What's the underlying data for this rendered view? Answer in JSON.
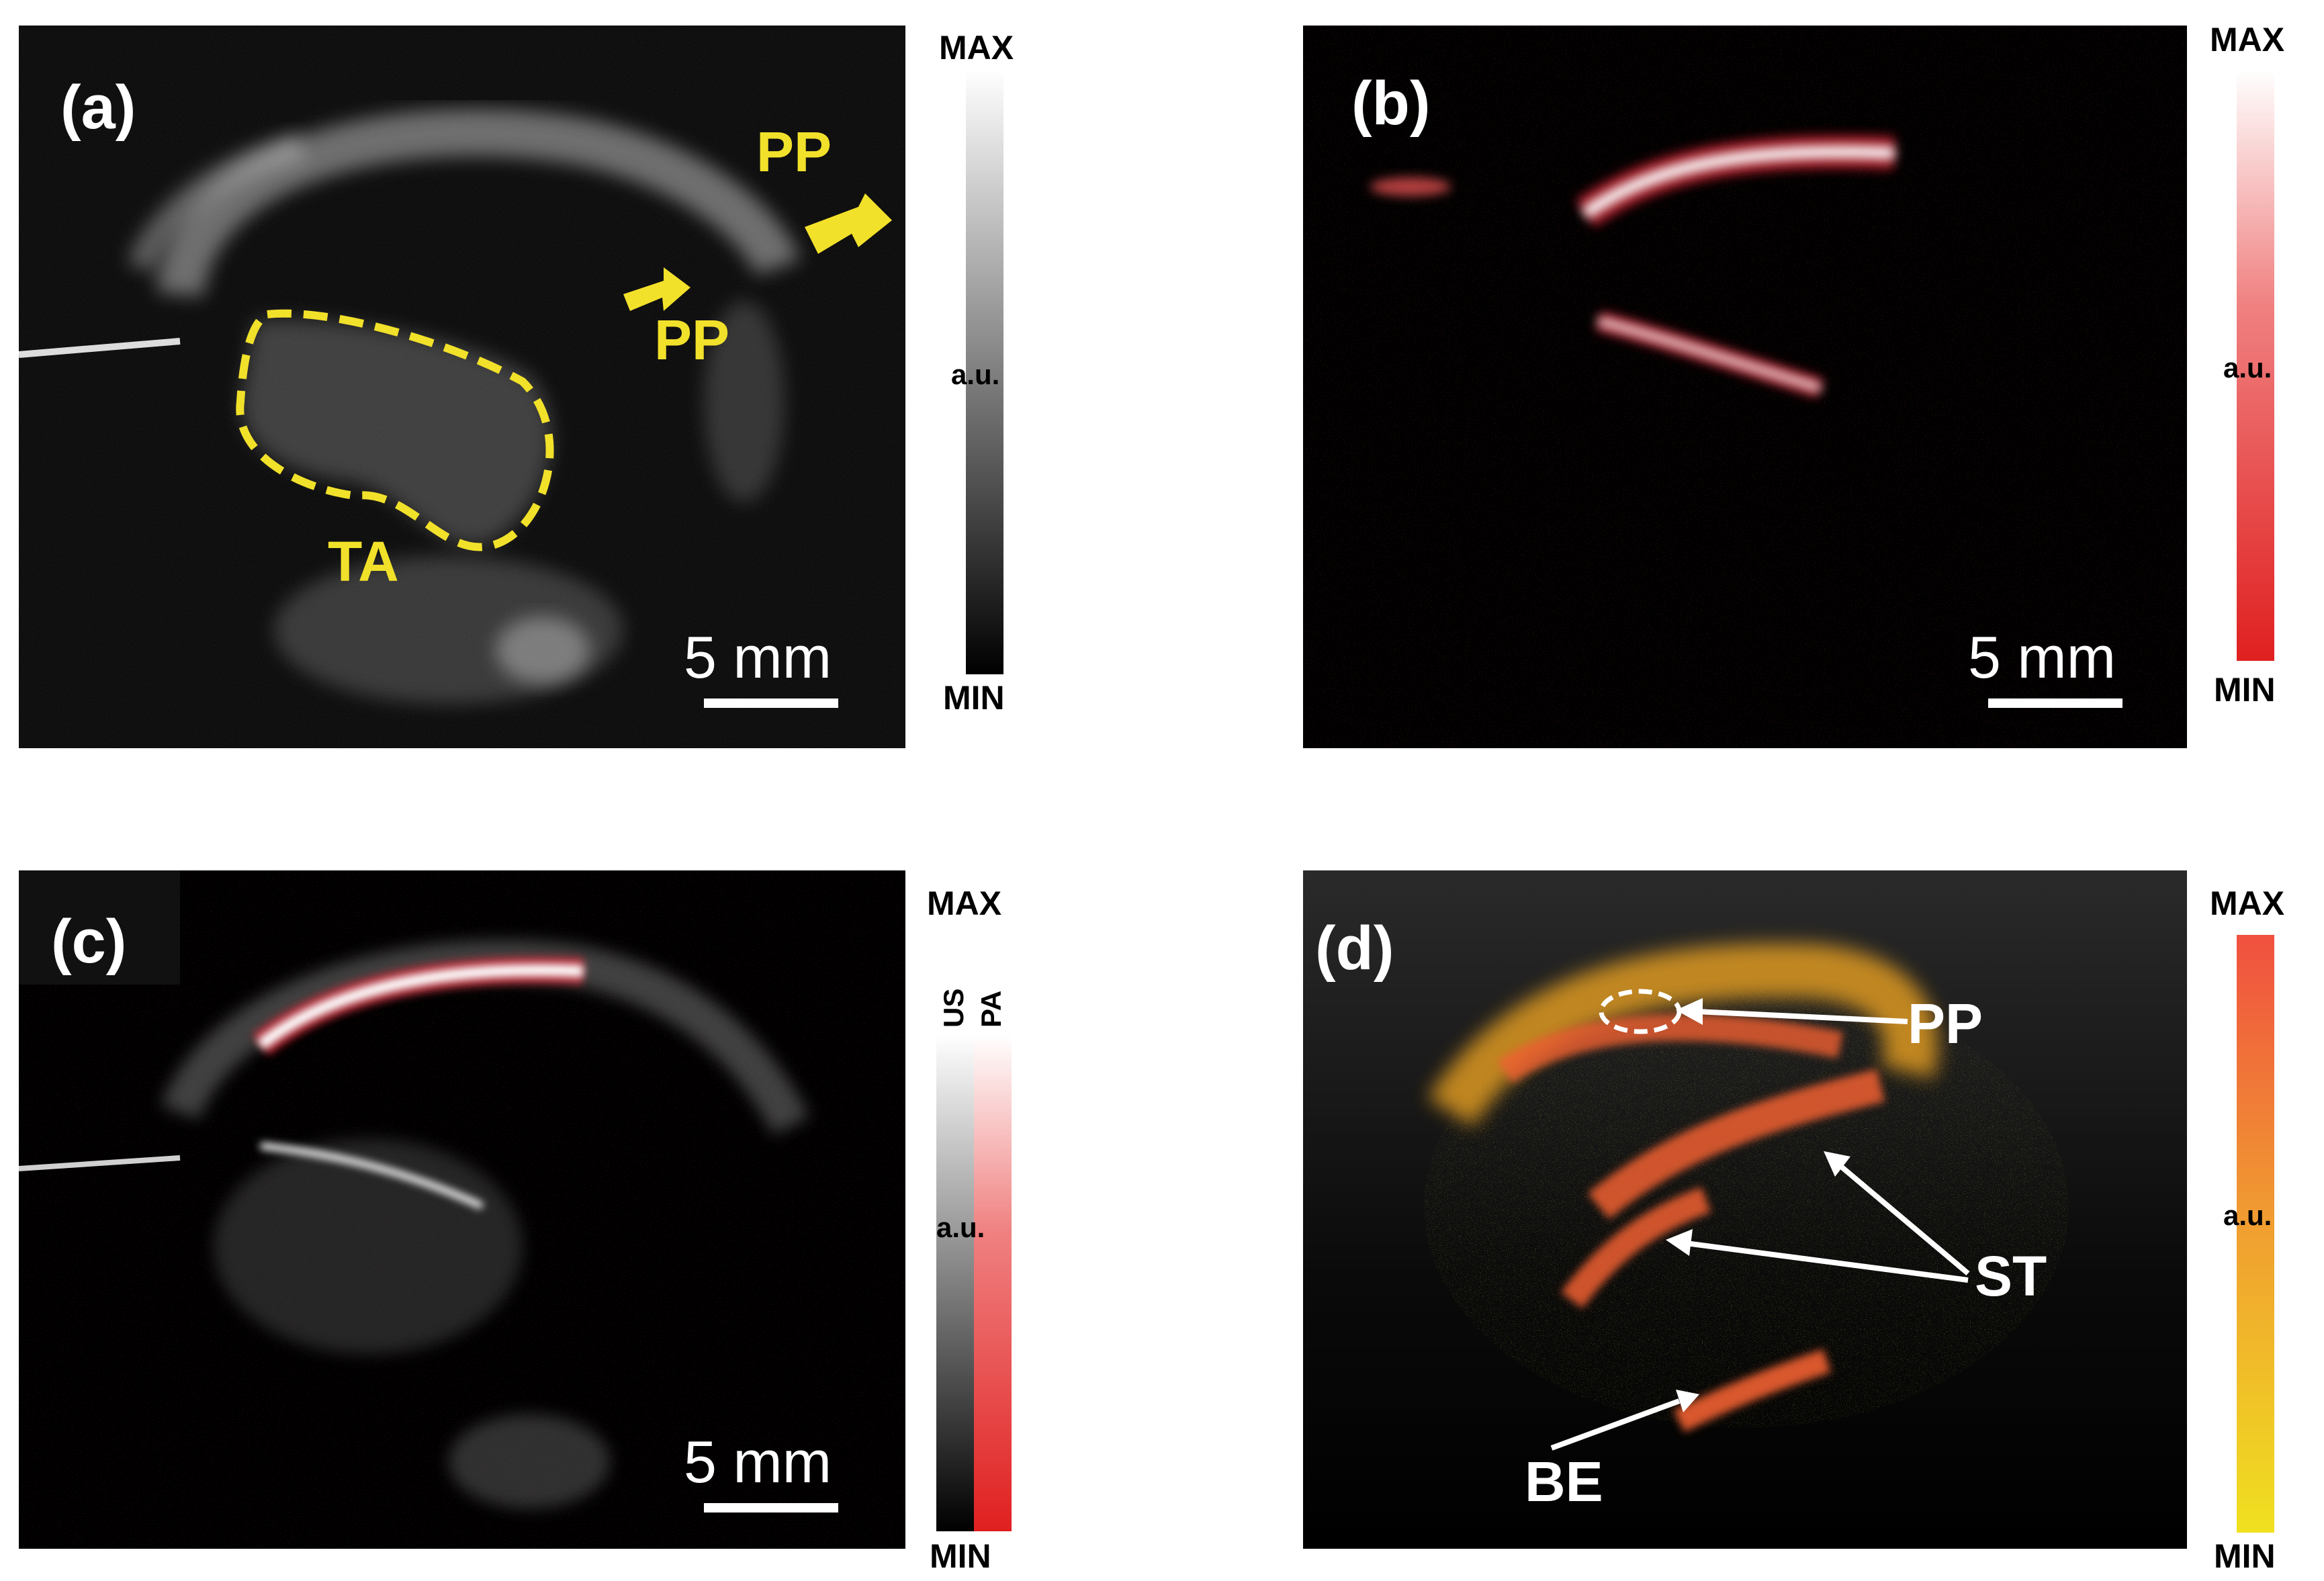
{
  "panels": {
    "a": {
      "label": "(a)",
      "annotations": [
        "PP",
        "PP",
        "TA"
      ],
      "scale_bar": "5 mm",
      "colorbar": {
        "max": "MAX",
        "mid": "a.u.",
        "min": "MIN",
        "colors": [
          "#000000",
          "#ffffff"
        ]
      }
    },
    "b": {
      "label": "(b)",
      "scale_bar": "5 mm",
      "colorbar": {
        "max": "MAX",
        "mid": "a.u.",
        "min": "MIN",
        "colors": [
          "#e02020",
          "#ffffff"
        ]
      }
    },
    "c": {
      "label": "(c)",
      "scale_bar": "5 mm",
      "colorbar": {
        "max": "MAX",
        "mid": "a.u.",
        "min": "MIN",
        "us_label": "US",
        "pa_label": "PA"
      }
    },
    "d": {
      "label": "(d)",
      "annotations": [
        "PP",
        "ST",
        "BE"
      ],
      "colorbar": {
        "max": "MAX",
        "mid": "a.u.",
        "min": "MIN",
        "colors": [
          "#f0e020",
          "#f05040"
        ]
      }
    }
  }
}
